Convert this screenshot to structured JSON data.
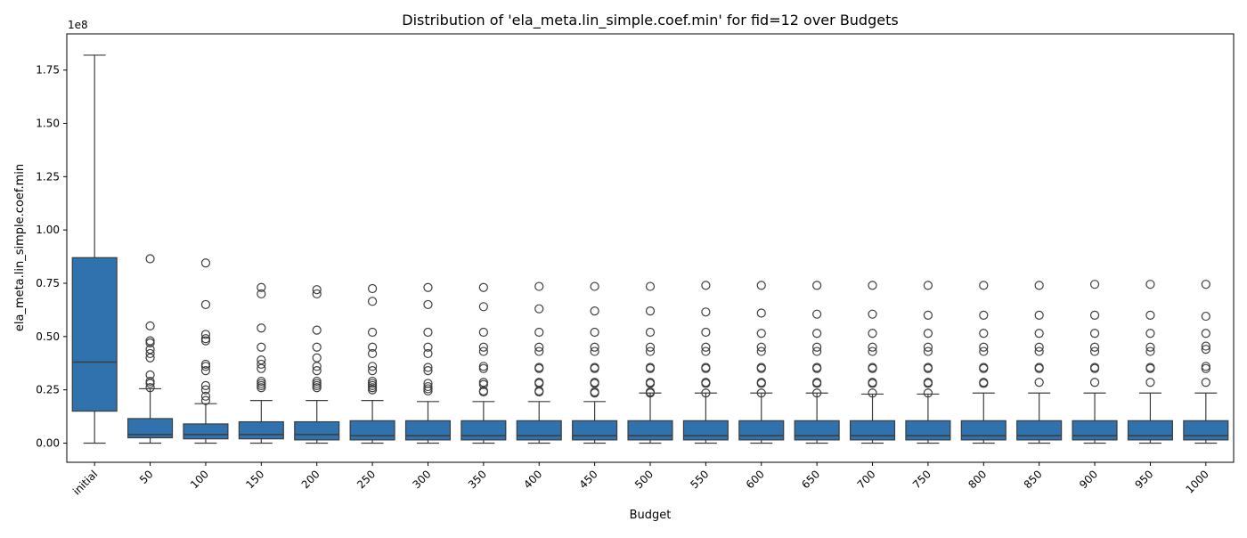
{
  "chart_data": {
    "type": "boxplot",
    "title": "Distribution of 'ela_meta.lin_simple.coef.min' for fid=12 over Budgets",
    "xlabel": "Budget",
    "ylabel": "ela_meta.lin_simple.coef.min",
    "y_offset_label": "1e8",
    "ylim": [
      -0.09,
      1.92
    ],
    "yticks": [
      0.0,
      0.25,
      0.5,
      0.75,
      1.0,
      1.25,
      1.5,
      1.75
    ],
    "ytick_labels": [
      "0.00",
      "0.25",
      "0.50",
      "0.75",
      "1.00",
      "1.25",
      "1.50",
      "1.75"
    ],
    "grid": false,
    "legend": "none",
    "box_color": "#2f72ad",
    "categories": [
      "initial",
      "50",
      "100",
      "150",
      "200",
      "250",
      "300",
      "350",
      "400",
      "450",
      "500",
      "550",
      "600",
      "650",
      "700",
      "750",
      "800",
      "850",
      "900",
      "950",
      "1000"
    ],
    "boxes": [
      {
        "whislo": 0.0,
        "q1": 0.15,
        "med": 0.38,
        "q3": 0.87,
        "whishi": 1.82,
        "fliers": []
      },
      {
        "whislo": 0.0,
        "q1": 0.025,
        "med": 0.04,
        "q3": 0.115,
        "whishi": 0.255,
        "fliers": [
          0.26,
          0.28,
          0.29,
          0.32,
          0.4,
          0.42,
          0.44,
          0.47,
          0.48,
          0.55,
          0.865
        ]
      },
      {
        "whislo": 0.0,
        "q1": 0.02,
        "med": 0.04,
        "q3": 0.09,
        "whishi": 0.185,
        "fliers": [
          0.2,
          0.22,
          0.25,
          0.27,
          0.34,
          0.36,
          0.37,
          0.48,
          0.49,
          0.51,
          0.65,
          0.845
        ]
      },
      {
        "whislo": 0.0,
        "q1": 0.02,
        "med": 0.04,
        "q3": 0.1,
        "whishi": 0.2,
        "fliers": [
          0.26,
          0.27,
          0.28,
          0.29,
          0.35,
          0.37,
          0.39,
          0.45,
          0.54,
          0.7,
          0.73
        ]
      },
      {
        "whislo": 0.0,
        "q1": 0.015,
        "med": 0.04,
        "q3": 0.1,
        "whishi": 0.2,
        "fliers": [
          0.26,
          0.27,
          0.28,
          0.29,
          0.34,
          0.36,
          0.4,
          0.45,
          0.53,
          0.7,
          0.72
        ]
      },
      {
        "whislo": 0.0,
        "q1": 0.015,
        "med": 0.035,
        "q3": 0.105,
        "whishi": 0.2,
        "fliers": [
          0.25,
          0.26,
          0.27,
          0.28,
          0.29,
          0.34,
          0.36,
          0.42,
          0.45,
          0.52,
          0.665,
          0.725
        ]
      },
      {
        "whislo": 0.0,
        "q1": 0.015,
        "med": 0.035,
        "q3": 0.105,
        "whishi": 0.195,
        "fliers": [
          0.245,
          0.255,
          0.265,
          0.28,
          0.34,
          0.355,
          0.42,
          0.45,
          0.52,
          0.65,
          0.73
        ]
      },
      {
        "whislo": 0.0,
        "q1": 0.015,
        "med": 0.035,
        "q3": 0.105,
        "whishi": 0.195,
        "fliers": [
          0.24,
          0.245,
          0.275,
          0.285,
          0.35,
          0.36,
          0.43,
          0.45,
          0.52,
          0.64,
          0.73
        ]
      },
      {
        "whislo": 0.0,
        "q1": 0.015,
        "med": 0.035,
        "q3": 0.105,
        "whishi": 0.195,
        "fliers": [
          0.24,
          0.245,
          0.28,
          0.285,
          0.35,
          0.355,
          0.43,
          0.45,
          0.52,
          0.63,
          0.735
        ]
      },
      {
        "whislo": 0.0,
        "q1": 0.015,
        "med": 0.035,
        "q3": 0.105,
        "whishi": 0.195,
        "fliers": [
          0.235,
          0.24,
          0.28,
          0.285,
          0.35,
          0.355,
          0.43,
          0.45,
          0.52,
          0.62,
          0.735
        ]
      },
      {
        "whislo": 0.0,
        "q1": 0.015,
        "med": 0.035,
        "q3": 0.105,
        "whishi": 0.235,
        "fliers": [
          0.235,
          0.24,
          0.28,
          0.285,
          0.35,
          0.355,
          0.43,
          0.45,
          0.52,
          0.62,
          0.735
        ]
      },
      {
        "whislo": 0.0,
        "q1": 0.015,
        "med": 0.035,
        "q3": 0.105,
        "whishi": 0.235,
        "fliers": [
          0.235,
          0.28,
          0.285,
          0.35,
          0.355,
          0.43,
          0.45,
          0.52,
          0.615,
          0.74
        ]
      },
      {
        "whislo": 0.0,
        "q1": 0.015,
        "med": 0.035,
        "q3": 0.105,
        "whishi": 0.235,
        "fliers": [
          0.235,
          0.28,
          0.285,
          0.35,
          0.355,
          0.43,
          0.45,
          0.515,
          0.61,
          0.74
        ]
      },
      {
        "whislo": 0.0,
        "q1": 0.015,
        "med": 0.035,
        "q3": 0.105,
        "whishi": 0.235,
        "fliers": [
          0.235,
          0.28,
          0.285,
          0.35,
          0.355,
          0.43,
          0.45,
          0.515,
          0.605,
          0.74
        ]
      },
      {
        "whislo": 0.0,
        "q1": 0.015,
        "med": 0.035,
        "q3": 0.105,
        "whishi": 0.23,
        "fliers": [
          0.235,
          0.28,
          0.285,
          0.35,
          0.355,
          0.43,
          0.45,
          0.515,
          0.605,
          0.74
        ]
      },
      {
        "whislo": 0.0,
        "q1": 0.015,
        "med": 0.035,
        "q3": 0.105,
        "whishi": 0.23,
        "fliers": [
          0.235,
          0.28,
          0.285,
          0.35,
          0.355,
          0.43,
          0.45,
          0.515,
          0.6,
          0.74
        ]
      },
      {
        "whislo": 0.0,
        "q1": 0.015,
        "med": 0.035,
        "q3": 0.105,
        "whishi": 0.235,
        "fliers": [
          0.28,
          0.285,
          0.35,
          0.355,
          0.43,
          0.45,
          0.515,
          0.6,
          0.74
        ]
      },
      {
        "whislo": 0.0,
        "q1": 0.015,
        "med": 0.035,
        "q3": 0.105,
        "whishi": 0.235,
        "fliers": [
          0.285,
          0.35,
          0.355,
          0.43,
          0.45,
          0.515,
          0.6,
          0.74
        ]
      },
      {
        "whislo": 0.0,
        "q1": 0.015,
        "med": 0.035,
        "q3": 0.105,
        "whishi": 0.235,
        "fliers": [
          0.285,
          0.35,
          0.355,
          0.43,
          0.45,
          0.515,
          0.6,
          0.745
        ]
      },
      {
        "whislo": 0.0,
        "q1": 0.015,
        "med": 0.035,
        "q3": 0.105,
        "whishi": 0.235,
        "fliers": [
          0.285,
          0.35,
          0.355,
          0.43,
          0.45,
          0.515,
          0.6,
          0.745
        ]
      },
      {
        "whislo": 0.0,
        "q1": 0.015,
        "med": 0.035,
        "q3": 0.105,
        "whishi": 0.235,
        "fliers": [
          0.285,
          0.35,
          0.36,
          0.44,
          0.455,
          0.515,
          0.595,
          0.745
        ]
      }
    ]
  }
}
